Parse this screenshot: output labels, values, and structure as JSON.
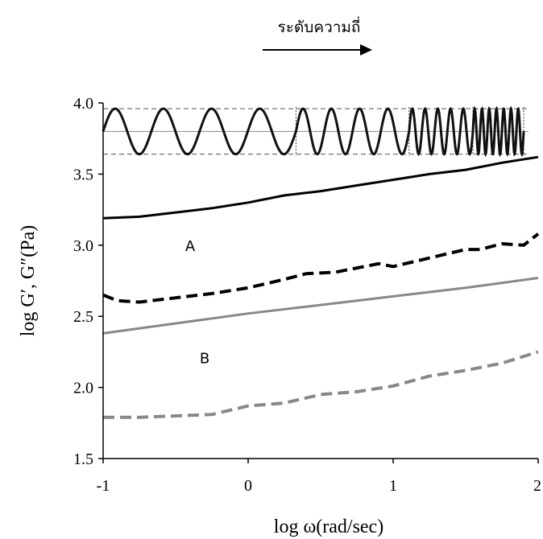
{
  "chart_data": {
    "type": "line",
    "xlabel": "log ω(rad/sec)",
    "ylabel": "log G′, G″(Pa)",
    "xlim": [
      -1,
      2
    ],
    "ylim": [
      1.5,
      4.0
    ],
    "x_ticks": [
      "-1",
      "0",
      "1",
      "2"
    ],
    "y_ticks": [
      "1.5",
      "2.0",
      "2.5",
      "3.0",
      "3.5",
      "4.0"
    ],
    "grid": false,
    "frequency_arrow_label": "ระดับความถี่",
    "annotations": [
      {
        "text": "A",
        "x": -0.4,
        "y": 2.96
      },
      {
        "text": "B",
        "x": -0.3,
        "y": 2.17
      }
    ],
    "series": [
      {
        "color": "#000000",
        "style": "solid",
        "x": [
          -1,
          -0.75,
          -0.5,
          -0.25,
          0,
          0.25,
          0.5,
          0.75,
          1,
          1.25,
          1.5,
          1.75,
          2
        ],
        "y": [
          3.19,
          3.2,
          3.23,
          3.26,
          3.3,
          3.35,
          3.38,
          3.42,
          3.46,
          3.5,
          3.53,
          3.58,
          3.62
        ]
      },
      {
        "color": "#000000",
        "style": "dashed",
        "x": [
          -1,
          -0.9,
          -0.75,
          -0.5,
          -0.25,
          0,
          0.25,
          0.4,
          0.6,
          0.75,
          0.9,
          1.0,
          1.25,
          1.5,
          1.6,
          1.75,
          1.9,
          2
        ],
        "y": [
          2.65,
          2.61,
          2.6,
          2.63,
          2.66,
          2.7,
          2.76,
          2.8,
          2.81,
          2.84,
          2.87,
          2.85,
          2.91,
          2.97,
          2.97,
          3.01,
          3.0,
          3.08
        ]
      },
      {
        "color": "#888888",
        "style": "solid",
        "x": [
          -1,
          -0.5,
          0,
          0.5,
          1,
          1.5,
          2
        ],
        "y": [
          2.38,
          2.45,
          2.52,
          2.58,
          2.64,
          2.7,
          2.77
        ]
      },
      {
        "color": "#888888",
        "style": "dashed",
        "x": [
          -1,
          -0.75,
          -0.5,
          -0.25,
          0,
          0.25,
          0.5,
          0.75,
          1,
          1.25,
          1.5,
          1.75,
          2
        ],
        "y": [
          1.79,
          1.79,
          1.8,
          1.81,
          1.87,
          1.89,
          1.95,
          1.97,
          2.01,
          2.08,
          2.12,
          2.17,
          2.25
        ]
      }
    ],
    "oscillation_inset": {
      "segments": [
        {
          "from": -1.0,
          "to": 0.33,
          "cycles": 4
        },
        {
          "from": 0.33,
          "to": 1.11,
          "cycles": 4
        },
        {
          "from": 1.11,
          "to": 1.55,
          "cycles": 5
        },
        {
          "from": 1.55,
          "to": 1.9,
          "cycles": 7
        }
      ],
      "center_y": 3.8,
      "amplitude": 0.16
    }
  }
}
